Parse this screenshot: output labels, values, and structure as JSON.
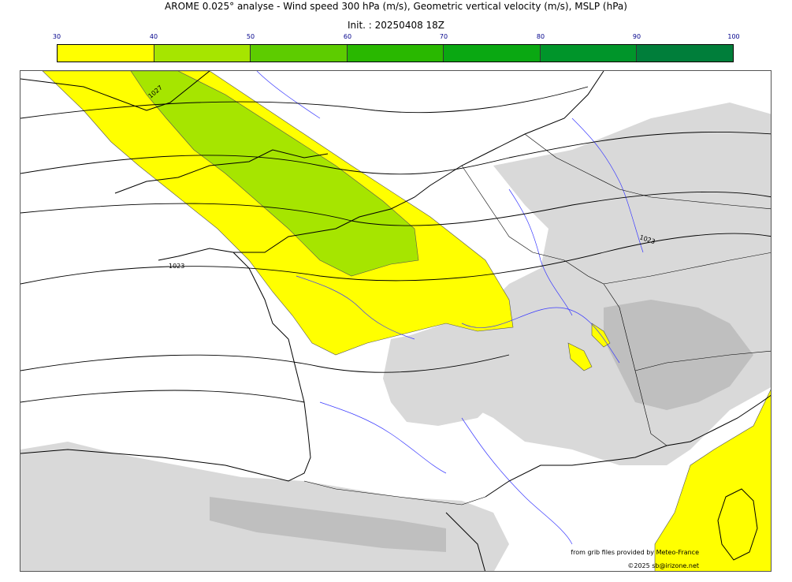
{
  "header": {
    "title": "AROME 0.025° analyse - Wind speed 300 hPa (m/s), Geometric vertical velocity (m/s), MSLP (hPa)",
    "init": "Init. : 20250408 18Z"
  },
  "colorbar": {
    "ticks": [
      "30",
      "40",
      "50",
      "60",
      "70",
      "80",
      "90",
      "100"
    ],
    "colors": [
      "#ffff00",
      "#a6e500",
      "#5dcc00",
      "#29b800",
      "#0aa812",
      "#00952a",
      "#007e3a",
      "#00744e"
    ]
  },
  "map": {
    "isobar_labels": [
      "1027",
      "1023",
      "1023"
    ],
    "colors": {
      "jet_30_40": "#ffff00",
      "jet_40_50": "#a6e500",
      "vertical_velocity": "#d9d9d9",
      "vertical_velocity_dark": "#bfbfbf",
      "coastline": "#000000",
      "rivers": "#3a3aff",
      "isobars": "#000000"
    }
  },
  "credits": {
    "line1": "from grib files provided by Meteo-France",
    "line2": "©2025 sb@irizone.net"
  }
}
